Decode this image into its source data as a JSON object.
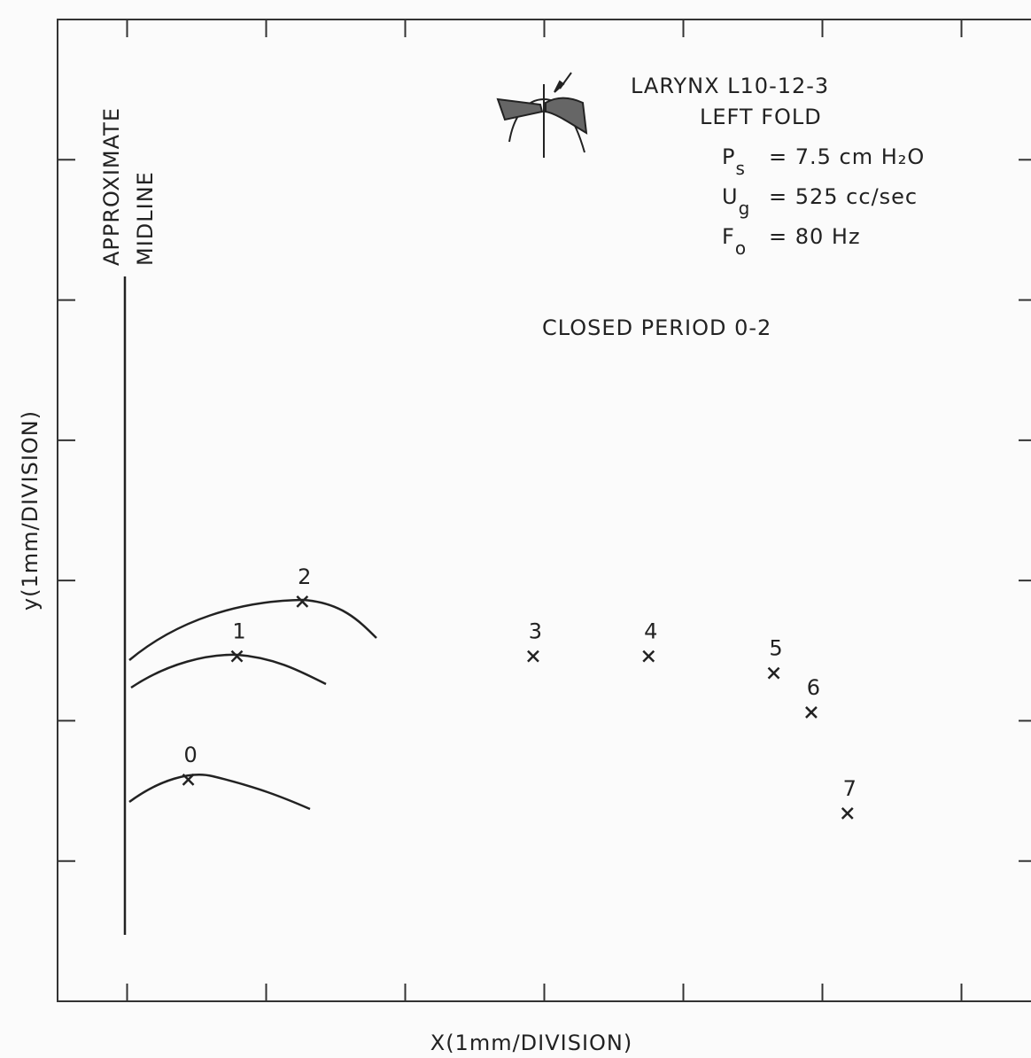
{
  "chart_data": {
    "type": "scatter",
    "x_label": "X(1mm/DIVISION)",
    "y_label": "y(1mm/DIVISION)",
    "midline_label": [
      "APPROXIMATE",
      "MIDLINE"
    ],
    "annotations": {
      "larynx": "LARYNX  L10-12-3",
      "fold": "LEFT FOLD",
      "parameters": [
        {
          "symbol": "P",
          "sub": "s",
          "text": "= 7.5 cm H₂O"
        },
        {
          "symbol": "U",
          "sub": "g",
          "text": "= 525 cc/sec"
        },
        {
          "symbol": "F",
          "sub": "o",
          "text": "= 80 Hz"
        }
      ],
      "period": "CLOSED PERIOD  0-2"
    },
    "point_labels": [
      "0",
      "1",
      "2",
      "3",
      "4",
      "5",
      "6",
      "7"
    ],
    "x": [
      0.44,
      0.79,
      1.26,
      2.92,
      3.75,
      4.65,
      4.92,
      5.18
    ],
    "y": [
      1.58,
      2.46,
      2.85,
      2.46,
      2.46,
      2.34,
      2.06,
      1.34
    ],
    "color": "#222222",
    "xlim": [
      -0.5,
      6.5
    ],
    "xticks": [
      0,
      1,
      2,
      3,
      4,
      5,
      6
    ],
    "ylim": [
      0,
      7
    ],
    "yticks": [
      1,
      2,
      3,
      4,
      5,
      6
    ]
  }
}
